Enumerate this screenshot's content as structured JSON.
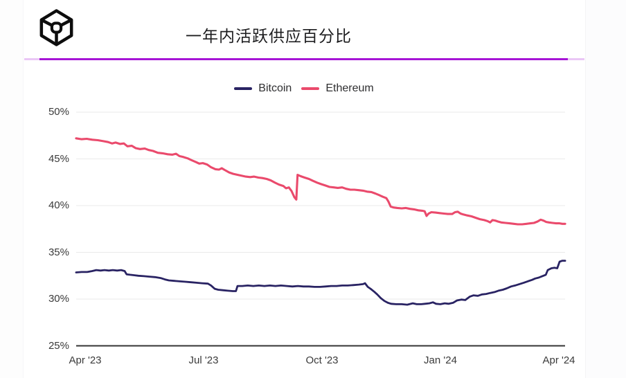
{
  "header": {
    "title": "一年内活跃供应百分比",
    "logo": "cube-wireframe-logo"
  },
  "theme": {
    "background": "#ffffff",
    "side_panel": "#fcfcfd",
    "gridline": "#eaeaea",
    "axis_line": "#333333",
    "tick_text": "#3a3a3a",
    "title_text": "#1d1d1f",
    "legend_text": "#2e2e30",
    "divider": "#a614d6",
    "divider_light": "#eac6f6",
    "logo_color": "#0d0d0d",
    "bitcoin_color": "#292363",
    "ethereum_color": "#ea4a6c"
  },
  "chart_data": {
    "type": "line",
    "title": "一年内活跃供应百分比",
    "xlabel": "",
    "ylabel": "",
    "grid": "horizontal",
    "legend_position": "top-center",
    "x_axis": {
      "unit": "months since Apr 2023",
      "range": [
        -0.23,
        12.16
      ],
      "ticks": [
        {
          "t": 0,
          "label": "Apr '23"
        },
        {
          "t": 3,
          "label": "Jul '23"
        },
        {
          "t": 6,
          "label": "Oct '23"
        },
        {
          "t": 9,
          "label": "Jan '24"
        },
        {
          "t": 12,
          "label": "Apr '24"
        }
      ]
    },
    "y_axis": {
      "unit": "percent",
      "range": [
        25,
        50
      ],
      "ticks": [
        {
          "v": 50,
          "label": "50%"
        },
        {
          "v": 45,
          "label": "45%"
        },
        {
          "v": 40,
          "label": "40%"
        },
        {
          "v": 35,
          "label": "35%"
        },
        {
          "v": 30,
          "label": "30%"
        },
        {
          "v": 25,
          "label": "25%"
        }
      ]
    },
    "series": [
      {
        "name": "Bitcoin",
        "color": "#292363",
        "points": [
          [
            -0.23,
            32.85
          ],
          [
            -0.09,
            32.9
          ],
          [
            0.05,
            32.9
          ],
          [
            0.18,
            33.0
          ],
          [
            0.28,
            33.1
          ],
          [
            0.39,
            33.05
          ],
          [
            0.49,
            33.1
          ],
          [
            0.6,
            33.05
          ],
          [
            0.7,
            33.1
          ],
          [
            0.81,
            33.05
          ],
          [
            0.91,
            33.1
          ],
          [
            1.0,
            33.0
          ],
          [
            1.05,
            32.65
          ],
          [
            1.14,
            32.6
          ],
          [
            1.25,
            32.55
          ],
          [
            1.35,
            32.5
          ],
          [
            1.49,
            32.45
          ],
          [
            1.63,
            32.4
          ],
          [
            1.77,
            32.35
          ],
          [
            1.91,
            32.25
          ],
          [
            2.02,
            32.1
          ],
          [
            2.12,
            32.0
          ],
          [
            2.26,
            31.95
          ],
          [
            2.4,
            31.9
          ],
          [
            2.54,
            31.85
          ],
          [
            2.68,
            31.8
          ],
          [
            2.82,
            31.75
          ],
          [
            2.96,
            31.7
          ],
          [
            3.11,
            31.65
          ],
          [
            3.19,
            31.45
          ],
          [
            3.28,
            31.1
          ],
          [
            3.37,
            31.0
          ],
          [
            3.49,
            30.95
          ],
          [
            3.61,
            30.9
          ],
          [
            3.74,
            30.85
          ],
          [
            3.82,
            30.85
          ],
          [
            3.86,
            31.4
          ],
          [
            3.98,
            31.4
          ],
          [
            4.12,
            31.45
          ],
          [
            4.26,
            31.4
          ],
          [
            4.4,
            31.45
          ],
          [
            4.54,
            31.4
          ],
          [
            4.68,
            31.45
          ],
          [
            4.82,
            31.4
          ],
          [
            4.96,
            31.45
          ],
          [
            5.11,
            31.4
          ],
          [
            5.25,
            31.35
          ],
          [
            5.39,
            31.4
          ],
          [
            5.53,
            31.35
          ],
          [
            5.67,
            31.35
          ],
          [
            5.81,
            31.3
          ],
          [
            5.95,
            31.3
          ],
          [
            6.09,
            31.35
          ],
          [
            6.23,
            31.4
          ],
          [
            6.37,
            31.4
          ],
          [
            6.51,
            31.45
          ],
          [
            6.65,
            31.45
          ],
          [
            6.79,
            31.5
          ],
          [
            6.93,
            31.55
          ],
          [
            7.04,
            31.6
          ],
          [
            7.09,
            31.7
          ],
          [
            7.16,
            31.3
          ],
          [
            7.23,
            31.1
          ],
          [
            7.32,
            30.8
          ],
          [
            7.4,
            30.5
          ],
          [
            7.49,
            30.1
          ],
          [
            7.58,
            29.8
          ],
          [
            7.67,
            29.6
          ],
          [
            7.75,
            29.5
          ],
          [
            7.88,
            29.45
          ],
          [
            8.02,
            29.45
          ],
          [
            8.16,
            29.4
          ],
          [
            8.3,
            29.55
          ],
          [
            8.4,
            29.45
          ],
          [
            8.51,
            29.45
          ],
          [
            8.61,
            29.5
          ],
          [
            8.72,
            29.55
          ],
          [
            8.81,
            29.65
          ],
          [
            8.89,
            29.5
          ],
          [
            9.0,
            29.45
          ],
          [
            9.11,
            29.55
          ],
          [
            9.21,
            29.5
          ],
          [
            9.32,
            29.6
          ],
          [
            9.42,
            29.85
          ],
          [
            9.53,
            29.95
          ],
          [
            9.63,
            29.9
          ],
          [
            9.74,
            30.25
          ],
          [
            9.84,
            30.4
          ],
          [
            9.95,
            30.35
          ],
          [
            10.05,
            30.5
          ],
          [
            10.16,
            30.55
          ],
          [
            10.26,
            30.65
          ],
          [
            10.37,
            30.75
          ],
          [
            10.47,
            30.9
          ],
          [
            10.58,
            31.0
          ],
          [
            10.68,
            31.15
          ],
          [
            10.79,
            31.35
          ],
          [
            10.89,
            31.45
          ],
          [
            11.0,
            31.6
          ],
          [
            11.11,
            31.75
          ],
          [
            11.21,
            31.9
          ],
          [
            11.32,
            32.05
          ],
          [
            11.4,
            32.2
          ],
          [
            11.49,
            32.3
          ],
          [
            11.58,
            32.45
          ],
          [
            11.67,
            32.6
          ],
          [
            11.72,
            33.1
          ],
          [
            11.81,
            33.3
          ],
          [
            11.89,
            33.35
          ],
          [
            11.96,
            33.3
          ],
          [
            12.02,
            34.0
          ],
          [
            12.09,
            34.1
          ],
          [
            12.16,
            34.1
          ]
        ]
      },
      {
        "name": "Ethereum",
        "color": "#ea4a6c",
        "points": [
          [
            -0.23,
            47.2
          ],
          [
            -0.09,
            47.1
          ],
          [
            0.04,
            47.15
          ],
          [
            0.18,
            47.05
          ],
          [
            0.32,
            47.0
          ],
          [
            0.46,
            46.9
          ],
          [
            0.58,
            46.8
          ],
          [
            0.68,
            46.65
          ],
          [
            0.77,
            46.75
          ],
          [
            0.88,
            46.6
          ],
          [
            0.98,
            46.65
          ],
          [
            1.07,
            46.35
          ],
          [
            1.18,
            46.4
          ],
          [
            1.28,
            46.15
          ],
          [
            1.39,
            46.05
          ],
          [
            1.51,
            46.1
          ],
          [
            1.61,
            45.95
          ],
          [
            1.72,
            45.85
          ],
          [
            1.84,
            45.65
          ],
          [
            1.96,
            45.6
          ],
          [
            2.09,
            45.5
          ],
          [
            2.21,
            45.45
          ],
          [
            2.3,
            45.55
          ],
          [
            2.39,
            45.3
          ],
          [
            2.49,
            45.2
          ],
          [
            2.6,
            45.05
          ],
          [
            2.7,
            44.85
          ],
          [
            2.81,
            44.65
          ],
          [
            2.89,
            44.5
          ],
          [
            2.98,
            44.55
          ],
          [
            3.09,
            44.4
          ],
          [
            3.19,
            44.1
          ],
          [
            3.3,
            43.9
          ],
          [
            3.39,
            43.85
          ],
          [
            3.46,
            44.0
          ],
          [
            3.54,
            43.8
          ],
          [
            3.65,
            43.55
          ],
          [
            3.75,
            43.4
          ],
          [
            3.86,
            43.3
          ],
          [
            3.96,
            43.2
          ],
          [
            4.07,
            43.1
          ],
          [
            4.18,
            43.05
          ],
          [
            4.28,
            43.1
          ],
          [
            4.39,
            43.0
          ],
          [
            4.49,
            42.95
          ],
          [
            4.6,
            42.85
          ],
          [
            4.7,
            42.7
          ],
          [
            4.81,
            42.45
          ],
          [
            4.91,
            42.25
          ],
          [
            5.02,
            42.1
          ],
          [
            5.09,
            41.85
          ],
          [
            5.16,
            41.95
          ],
          [
            5.23,
            41.55
          ],
          [
            5.3,
            40.9
          ],
          [
            5.35,
            40.65
          ],
          [
            5.38,
            43.3
          ],
          [
            5.46,
            43.15
          ],
          [
            5.56,
            43.0
          ],
          [
            5.67,
            42.85
          ],
          [
            5.77,
            42.65
          ],
          [
            5.88,
            42.45
          ],
          [
            5.98,
            42.3
          ],
          [
            6.09,
            42.15
          ],
          [
            6.19,
            42.0
          ],
          [
            6.3,
            41.95
          ],
          [
            6.4,
            41.9
          ],
          [
            6.51,
            41.95
          ],
          [
            6.61,
            41.8
          ],
          [
            6.72,
            41.7
          ],
          [
            6.82,
            41.7
          ],
          [
            6.93,
            41.65
          ],
          [
            7.04,
            41.6
          ],
          [
            7.14,
            41.5
          ],
          [
            7.25,
            41.45
          ],
          [
            7.35,
            41.3
          ],
          [
            7.46,
            41.1
          ],
          [
            7.54,
            40.95
          ],
          [
            7.63,
            40.8
          ],
          [
            7.68,
            40.45
          ],
          [
            7.74,
            39.9
          ],
          [
            7.81,
            39.8
          ],
          [
            7.91,
            39.75
          ],
          [
            8.02,
            39.7
          ],
          [
            8.12,
            39.75
          ],
          [
            8.23,
            39.65
          ],
          [
            8.33,
            39.6
          ],
          [
            8.44,
            39.5
          ],
          [
            8.54,
            39.45
          ],
          [
            8.6,
            39.4
          ],
          [
            8.65,
            38.9
          ],
          [
            8.7,
            39.15
          ],
          [
            8.77,
            39.3
          ],
          [
            8.88,
            39.25
          ],
          [
            8.98,
            39.2
          ],
          [
            9.09,
            39.15
          ],
          [
            9.19,
            39.1
          ],
          [
            9.3,
            39.1
          ],
          [
            9.37,
            39.3
          ],
          [
            9.44,
            39.35
          ],
          [
            9.51,
            39.15
          ],
          [
            9.58,
            39.05
          ],
          [
            9.68,
            38.95
          ],
          [
            9.79,
            38.85
          ],
          [
            9.89,
            38.7
          ],
          [
            10.0,
            38.55
          ],
          [
            10.11,
            38.45
          ],
          [
            10.19,
            38.35
          ],
          [
            10.26,
            38.2
          ],
          [
            10.32,
            38.45
          ],
          [
            10.39,
            38.4
          ],
          [
            10.46,
            38.3
          ],
          [
            10.54,
            38.2
          ],
          [
            10.65,
            38.15
          ],
          [
            10.75,
            38.1
          ],
          [
            10.86,
            38.05
          ],
          [
            10.96,
            38.0
          ],
          [
            11.07,
            38.0
          ],
          [
            11.18,
            38.05
          ],
          [
            11.28,
            38.1
          ],
          [
            11.37,
            38.15
          ],
          [
            11.46,
            38.3
          ],
          [
            11.54,
            38.5
          ],
          [
            11.61,
            38.4
          ],
          [
            11.68,
            38.25
          ],
          [
            11.75,
            38.2
          ],
          [
            11.84,
            38.15
          ],
          [
            11.93,
            38.1
          ],
          [
            12.02,
            38.1
          ],
          [
            12.09,
            38.05
          ],
          [
            12.16,
            38.05
          ]
        ]
      }
    ]
  }
}
